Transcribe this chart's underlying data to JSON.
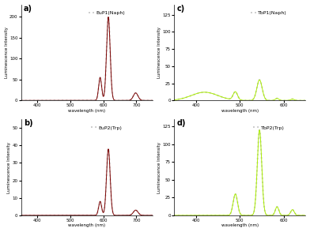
{
  "legend_a": "EuP1(Naph)",
  "legend_b": "EuP2(Trp)",
  "legend_c": "TbP1(Naph)",
  "legend_d": "TbP2(Trp)",
  "xlabel": "wavelength (nm)",
  "ylabel": "Luminescence Intensity",
  "color_eu": "#7B0000",
  "color_tb": "#AAEE00",
  "color_bg": "#CCCCCC",
  "xlim_eu": [
    350,
    750
  ],
  "xlim_tb": [
    350,
    650
  ],
  "ylim_a": [
    0,
    230
  ],
  "ylim_b": [
    0,
    55
  ],
  "ylim_c": [
    0,
    140
  ],
  "ylim_d": [
    0,
    135
  ],
  "yticks_a": [
    0,
    50,
    100,
    150,
    200
  ],
  "yticks_b": [
    0,
    10,
    20,
    30,
    40,
    50
  ],
  "yticks_c": [
    0,
    25,
    50,
    75,
    100,
    125
  ],
  "yticks_d": [
    0,
    25,
    50,
    75,
    100,
    125
  ],
  "xticks_eu": [
    400,
    500,
    600,
    700
  ],
  "xticks_tb": [
    400,
    500,
    600
  ],
  "subplot_label_fontsize": 7,
  "legend_fontsize": 4.5,
  "axis_fontsize": 4,
  "tick_fontsize": 4
}
